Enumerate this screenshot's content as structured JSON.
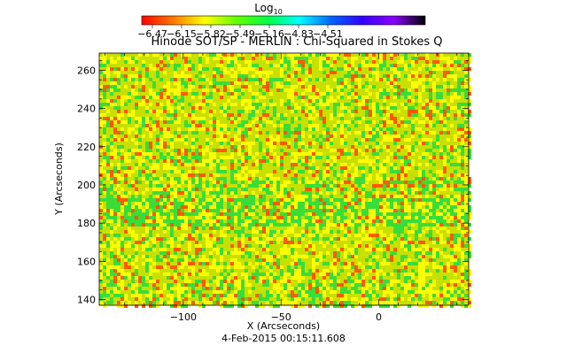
{
  "chart_data": {
    "type": "heatmap",
    "title": "Hinode SOT/SP - MERLIN : Chi-Squared in Stokes Q",
    "xlabel": "X (Arcseconds)",
    "ylabel": "Y (Arcseconds)",
    "date_label": "4-Feb-2015 00:15:11.608",
    "xlim": [
      -143,
      46
    ],
    "ylim": [
      137,
      269
    ],
    "x_ticks": [
      -100,
      -50,
      0
    ],
    "x_tick_labels": [
      "−100",
      "−50",
      "0"
    ],
    "y_ticks": [
      140,
      160,
      180,
      200,
      220,
      240,
      260
    ],
    "y_tick_labels": [
      "140",
      "160",
      "180",
      "200",
      "220",
      "240",
      "260"
    ],
    "colorbar": {
      "title_main": "Log",
      "title_sub": "10",
      "tick_labels": [
        "−6.47",
        "−6.15",
        "−5.82",
        "−5.49",
        "−5.16",
        "−4.83",
        "−4.51"
      ],
      "colormap": [
        "#ff0000",
        "#ff7a00",
        "#ffff00",
        "#66ff00",
        "#00ff44",
        "#00ffff",
        "#0066ff",
        "#3300ff",
        "#8800ff",
        "#000000"
      ]
    },
    "dominant_colors": [
      "#c8e000",
      "#ffff00",
      "#39dd3a",
      "#ff5a00"
    ]
  }
}
